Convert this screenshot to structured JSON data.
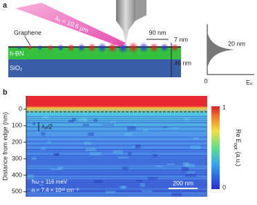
{
  "panel_a": {
    "label": "a",
    "wavelength": "λ₀ = 10.6 μm",
    "graphene": "Graphene",
    "hbn": "h-BN",
    "sio2": "SiO₂",
    "spacing": "90 nm",
    "gap": "7 nm",
    "thickness": "46 nm",
    "decay": "20 nm",
    "origin": "0",
    "field": "Eₓ"
  },
  "panel_b": {
    "label": "b",
    "y_label": "Distance from edge (nm)",
    "ylim": [
      -80,
      530
    ],
    "yticks": [
      0,
      100,
      200,
      300,
      400,
      500
    ],
    "colorbar_label": "Re E",
    "colorbar_sub": "opt",
    "colorbar_unit": "(a.u.)",
    "colorbar_max": "1",
    "colorbar_min": "0",
    "half_wavelength": "λₚ/2",
    "scale_bar": "200 nm",
    "energy": "ħω = 116 meV",
    "density": "n = 7.4 × 10¹² cm⁻²"
  }
}
